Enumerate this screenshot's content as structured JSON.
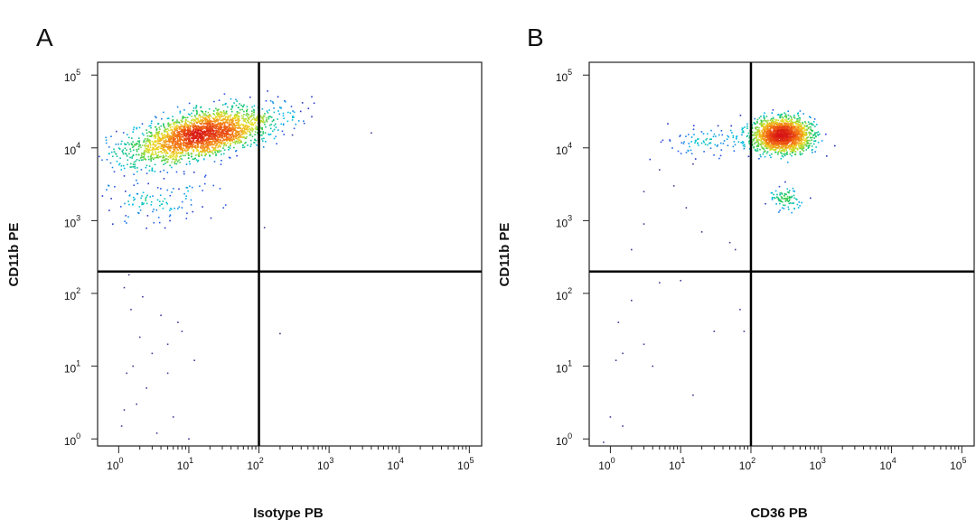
{
  "chart_data": [
    {
      "type": "scatter",
      "panel_label": "A",
      "title": "",
      "xlabel": "Isotype PB",
      "ylabel": "CD11b PE",
      "x_scale": "log",
      "y_scale": "log",
      "xlim": [
        0.5,
        150000
      ],
      "ylim": [
        0.8,
        150000
      ],
      "x_ticks": [
        {
          "base": "10",
          "exp": "0",
          "value": 1
        },
        {
          "base": "10",
          "exp": "1",
          "value": 10
        },
        {
          "base": "10",
          "exp": "2",
          "value": 100
        },
        {
          "base": "10",
          "exp": "3",
          "value": 1000
        },
        {
          "base": "10",
          "exp": "4",
          "value": 10000
        },
        {
          "base": "10",
          "exp": "5",
          "value": 100000
        }
      ],
      "y_ticks": [
        {
          "base": "10",
          "exp": "0",
          "value": 1
        },
        {
          "base": "10",
          "exp": "1",
          "value": 10
        },
        {
          "base": "10",
          "exp": "2",
          "value": 100
        },
        {
          "base": "10",
          "exp": "3",
          "value": 1000
        },
        {
          "base": "10",
          "exp": "4",
          "value": 10000
        },
        {
          "base": "10",
          "exp": "5",
          "value": 100000
        }
      ],
      "quadrant_gate": {
        "x": 100,
        "y": 200
      },
      "grid": false,
      "legend": "none",
      "density_clusters": [
        {
          "center": [
            15,
            15000
          ],
          "spread": [
            0.5,
            0.15
          ],
          "count": 2600,
          "tilt": 0.2
        },
        {
          "center": [
            3,
            2000
          ],
          "spread": [
            0.4,
            0.18
          ],
          "count": 120,
          "tilt": 0
        }
      ],
      "sparse_points": [
        [
          300,
          15000
        ],
        [
          4000,
          16000
        ],
        [
          120,
          800
        ],
        [
          200,
          28
        ],
        [
          1.2,
          120
        ],
        [
          1.5,
          60
        ],
        [
          2,
          25
        ],
        [
          3,
          15
        ],
        [
          4,
          50
        ],
        [
          5,
          20
        ],
        [
          1.3,
          8
        ],
        [
          2.5,
          5
        ],
        [
          6,
          2
        ],
        [
          1.8,
          3
        ],
        [
          12,
          12
        ],
        [
          8,
          30
        ],
        [
          1.1,
          1.5
        ],
        [
          3.5,
          1.2
        ],
        [
          1.4,
          180
        ],
        [
          2.2,
          90
        ],
        [
          7,
          40
        ],
        [
          1.6,
          10
        ],
        [
          5,
          8
        ],
        [
          10,
          1
        ],
        [
          1.2,
          2.5
        ]
      ]
    },
    {
      "type": "scatter",
      "panel_label": "B",
      "title": "",
      "xlabel": "CD36 PB",
      "ylabel": "CD11b PE",
      "x_scale": "log",
      "y_scale": "log",
      "xlim": [
        0.5,
        150000
      ],
      "ylim": [
        0.8,
        150000
      ],
      "x_ticks": [
        {
          "base": "10",
          "exp": "0",
          "value": 1
        },
        {
          "base": "10",
          "exp": "1",
          "value": 10
        },
        {
          "base": "10",
          "exp": "2",
          "value": 100
        },
        {
          "base": "10",
          "exp": "3",
          "value": 1000
        },
        {
          "base": "10",
          "exp": "4",
          "value": 10000
        },
        {
          "base": "10",
          "exp": "5",
          "value": 100000
        }
      ],
      "y_ticks": [
        {
          "base": "10",
          "exp": "0",
          "value": 1
        },
        {
          "base": "10",
          "exp": "1",
          "value": 10
        },
        {
          "base": "10",
          "exp": "2",
          "value": 100
        },
        {
          "base": "10",
          "exp": "3",
          "value": 1000
        },
        {
          "base": "10",
          "exp": "4",
          "value": 10000
        },
        {
          "base": "10",
          "exp": "5",
          "value": 100000
        }
      ],
      "quadrant_gate": {
        "x": 100,
        "y": 200
      },
      "grid": false,
      "legend": "none",
      "density_clusters": [
        {
          "center": [
            280,
            15000
          ],
          "spread": [
            0.2,
            0.11
          ],
          "count": 2000,
          "tilt": 0
        },
        {
          "center": [
            320,
            2000
          ],
          "spread": [
            0.12,
            0.08
          ],
          "count": 90,
          "tilt": 0
        },
        {
          "center": [
            30,
            12000
          ],
          "spread": [
            0.35,
            0.1
          ],
          "count": 110,
          "tilt": 0
        }
      ],
      "sparse_points": [
        [
          5,
          5000
        ],
        [
          8,
          3000
        ],
        [
          3,
          2500
        ],
        [
          15,
          6000
        ],
        [
          2,
          400
        ],
        [
          3,
          900
        ],
        [
          20,
          700
        ],
        [
          12,
          1500
        ],
        [
          50,
          500
        ],
        [
          70,
          60
        ],
        [
          80,
          30
        ],
        [
          30,
          30
        ],
        [
          15,
          4
        ],
        [
          1,
          2
        ],
        [
          1.2,
          12
        ],
        [
          2,
          80
        ],
        [
          5,
          140
        ],
        [
          10,
          150
        ],
        [
          3,
          20
        ],
        [
          1.3,
          40
        ],
        [
          1.5,
          15
        ],
        [
          4,
          10
        ],
        [
          60,
          400
        ],
        [
          0.8,
          0.9
        ],
        [
          1.5,
          1.5
        ]
      ]
    }
  ]
}
